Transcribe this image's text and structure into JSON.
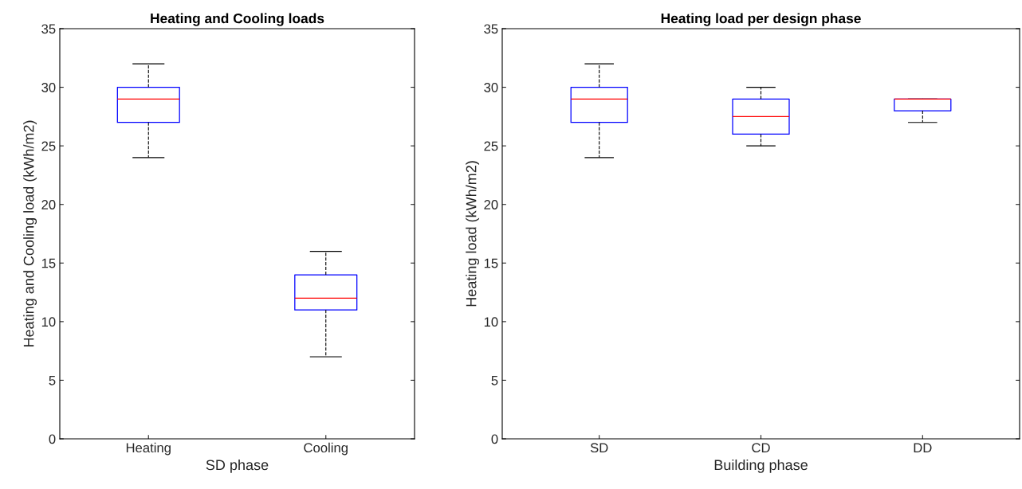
{
  "chart_data": [
    {
      "type": "box",
      "title": "Heating and Cooling loads",
      "xlabel": "SD phase",
      "ylabel": "Heating and Cooling load (kWh/m2)",
      "categories": [
        "Heating",
        "Cooling"
      ],
      "ylim": [
        0,
        35
      ],
      "yticks": [
        0,
        5,
        10,
        15,
        20,
        25,
        30,
        35
      ],
      "color": "#0000ff",
      "line_style": "dashed",
      "grid": false,
      "boxes": [
        {
          "low": 24,
          "q1": 27,
          "median": 29,
          "q3": 30,
          "high": 32
        },
        {
          "low": 7,
          "q1": 11,
          "median": 12,
          "q3": 14,
          "high": 16
        }
      ]
    },
    {
      "type": "box",
      "title": "Heating load per design phase",
      "xlabel": "Building phase",
      "ylabel": "Heating load (kWh/m2)",
      "categories": [
        "SD",
        "CD",
        "DD"
      ],
      "ylim": [
        0,
        35
      ],
      "yticks": [
        0,
        5,
        10,
        15,
        20,
        25,
        30,
        35
      ],
      "color": "#0000ff",
      "line_style": "dashed",
      "grid": false,
      "boxes": [
        {
          "low": 24,
          "q1": 27,
          "median": 29,
          "q3": 30,
          "high": 32
        },
        {
          "low": 25,
          "q1": 26,
          "median": 27.5,
          "q3": 29,
          "high": 30
        },
        {
          "low": 27,
          "q1": 28,
          "median": 29,
          "q3": 29,
          "high": 29
        }
      ]
    }
  ]
}
